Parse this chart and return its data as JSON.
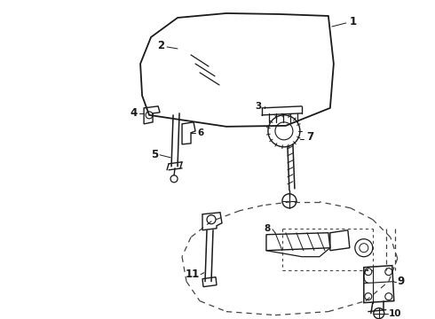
{
  "bg_color": "#ffffff",
  "line_color": "#1a1a1a",
  "dash_color": "#444444",
  "label_fontsize": 8.5,
  "label_fontweight": "bold",
  "figsize": [
    4.9,
    3.6
  ],
  "dpi": 100
}
